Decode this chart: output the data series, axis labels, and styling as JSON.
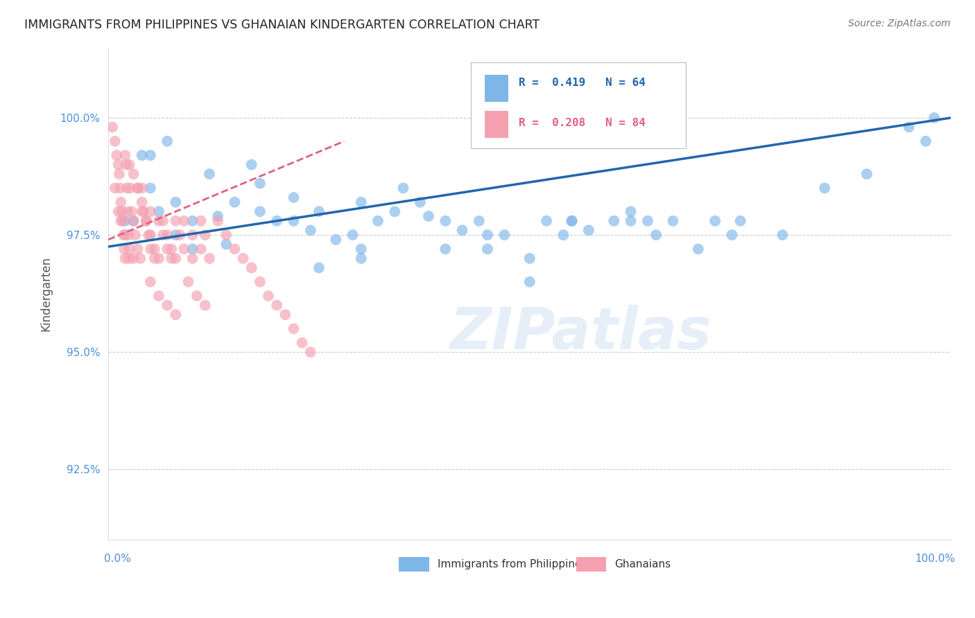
{
  "title": "IMMIGRANTS FROM PHILIPPINES VS GHANAIAN KINDERGARTEN CORRELATION CHART",
  "source": "Source: ZipAtlas.com",
  "ylabel": "Kindergarten",
  "yticks": [
    92.5,
    95.0,
    97.5,
    100.0
  ],
  "ytick_labels": [
    "92.5%",
    "95.0%",
    "97.5%",
    "100.0%"
  ],
  "xlim": [
    0.0,
    1.0
  ],
  "ylim": [
    91.0,
    101.5
  ],
  "legend_blue_label": "Immigrants from Philippines",
  "legend_pink_label": "Ghanaians",
  "legend_R_blue": "R =  0.419",
  "legend_N_blue": "N = 64",
  "legend_R_pink": "R =  0.208",
  "legend_N_pink": "N = 84",
  "blue_color": "#7EB6E8",
  "pink_color": "#F4A0B0",
  "blue_line_color": "#2166AC",
  "pink_line_color": "#E06080",
  "blue_line_x0": 0.0,
  "blue_line_y0": 97.25,
  "blue_line_x1": 1.0,
  "blue_line_y1": 100.0,
  "pink_line_x0": 0.0,
  "pink_line_y0": 97.4,
  "pink_line_x1": 0.28,
  "pink_line_y1": 99.5,
  "watermark_text": "ZIPatlas",
  "background_color": "#ffffff",
  "grid_color": "#CCCCCC",
  "title_color": "#222222",
  "axis_label_color": "#4A90D9",
  "ylabel_color": "#555555",
  "blue_scatter_x": [
    0.02,
    0.04,
    0.05,
    0.06,
    0.07,
    0.08,
    0.1,
    0.12,
    0.13,
    0.14,
    0.15,
    0.17,
    0.18,
    0.2,
    0.22,
    0.24,
    0.25,
    0.27,
    0.29,
    0.3,
    0.32,
    0.34,
    0.35,
    0.37,
    0.38,
    0.4,
    0.42,
    0.44,
    0.45,
    0.47,
    0.5,
    0.52,
    0.54,
    0.55,
    0.57,
    0.6,
    0.62,
    0.64,
    0.65,
    0.67,
    0.7,
    0.72,
    0.74,
    0.75,
    0.8,
    0.85,
    0.9,
    0.95,
    0.97,
    0.98,
    0.3,
    0.25,
    0.4,
    0.45,
    0.5,
    0.22,
    0.18,
    0.55,
    0.62,
    0.3,
    0.1,
    0.08,
    0.05,
    0.03
  ],
  "blue_scatter_y": [
    97.8,
    99.2,
    98.5,
    98.0,
    99.5,
    97.5,
    97.2,
    98.8,
    97.9,
    97.3,
    98.2,
    99.0,
    98.6,
    97.8,
    98.3,
    97.6,
    98.0,
    97.4,
    97.5,
    97.2,
    97.8,
    98.0,
    98.5,
    98.2,
    97.9,
    97.8,
    97.6,
    97.8,
    97.2,
    97.5,
    97.0,
    97.8,
    97.5,
    97.8,
    97.6,
    97.8,
    98.0,
    97.8,
    97.5,
    97.8,
    97.2,
    97.8,
    97.5,
    97.8,
    97.5,
    98.5,
    98.8,
    99.8,
    99.5,
    100.0,
    97.0,
    96.8,
    97.2,
    97.5,
    96.5,
    97.8,
    98.0,
    97.8,
    97.8,
    98.2,
    97.8,
    98.2,
    99.2,
    97.8
  ],
  "pink_scatter_x": [
    0.005,
    0.008,
    0.01,
    0.012,
    0.013,
    0.014,
    0.015,
    0.016,
    0.017,
    0.018,
    0.019,
    0.02,
    0.021,
    0.022,
    0.023,
    0.024,
    0.025,
    0.026,
    0.028,
    0.03,
    0.032,
    0.035,
    0.038,
    0.04,
    0.042,
    0.045,
    0.048,
    0.05,
    0.055,
    0.06,
    0.065,
    0.07,
    0.075,
    0.08,
    0.085,
    0.09,
    0.1,
    0.11,
    0.115,
    0.008,
    0.012,
    0.015,
    0.02,
    0.025,
    0.03,
    0.035,
    0.04,
    0.045,
    0.05,
    0.055,
    0.06,
    0.065,
    0.07,
    0.075,
    0.08,
    0.09,
    0.1,
    0.11,
    0.12,
    0.13,
    0.14,
    0.15,
    0.16,
    0.17,
    0.18,
    0.19,
    0.2,
    0.21,
    0.22,
    0.23,
    0.24,
    0.05,
    0.06,
    0.07,
    0.08,
    0.095,
    0.105,
    0.115,
    0.02,
    0.025,
    0.03,
    0.035,
    0.04,
    0.05
  ],
  "pink_scatter_y": [
    99.8,
    99.5,
    99.2,
    99.0,
    98.8,
    98.5,
    98.2,
    98.0,
    97.8,
    97.5,
    97.2,
    97.0,
    99.0,
    98.5,
    98.0,
    97.5,
    97.0,
    98.5,
    98.0,
    97.8,
    97.5,
    97.2,
    97.0,
    98.5,
    98.0,
    97.8,
    97.5,
    97.2,
    97.0,
    97.8,
    97.5,
    97.2,
    97.0,
    97.8,
    97.5,
    97.2,
    97.0,
    97.8,
    97.5,
    98.5,
    98.0,
    97.8,
    97.5,
    97.2,
    97.0,
    98.5,
    98.0,
    97.8,
    97.5,
    97.2,
    97.0,
    97.8,
    97.5,
    97.2,
    97.0,
    97.8,
    97.5,
    97.2,
    97.0,
    97.8,
    97.5,
    97.2,
    97.0,
    96.8,
    96.5,
    96.2,
    96.0,
    95.8,
    95.5,
    95.2,
    95.0,
    96.5,
    96.2,
    96.0,
    95.8,
    96.5,
    96.2,
    96.0,
    99.2,
    99.0,
    98.8,
    98.5,
    98.2,
    98.0
  ]
}
